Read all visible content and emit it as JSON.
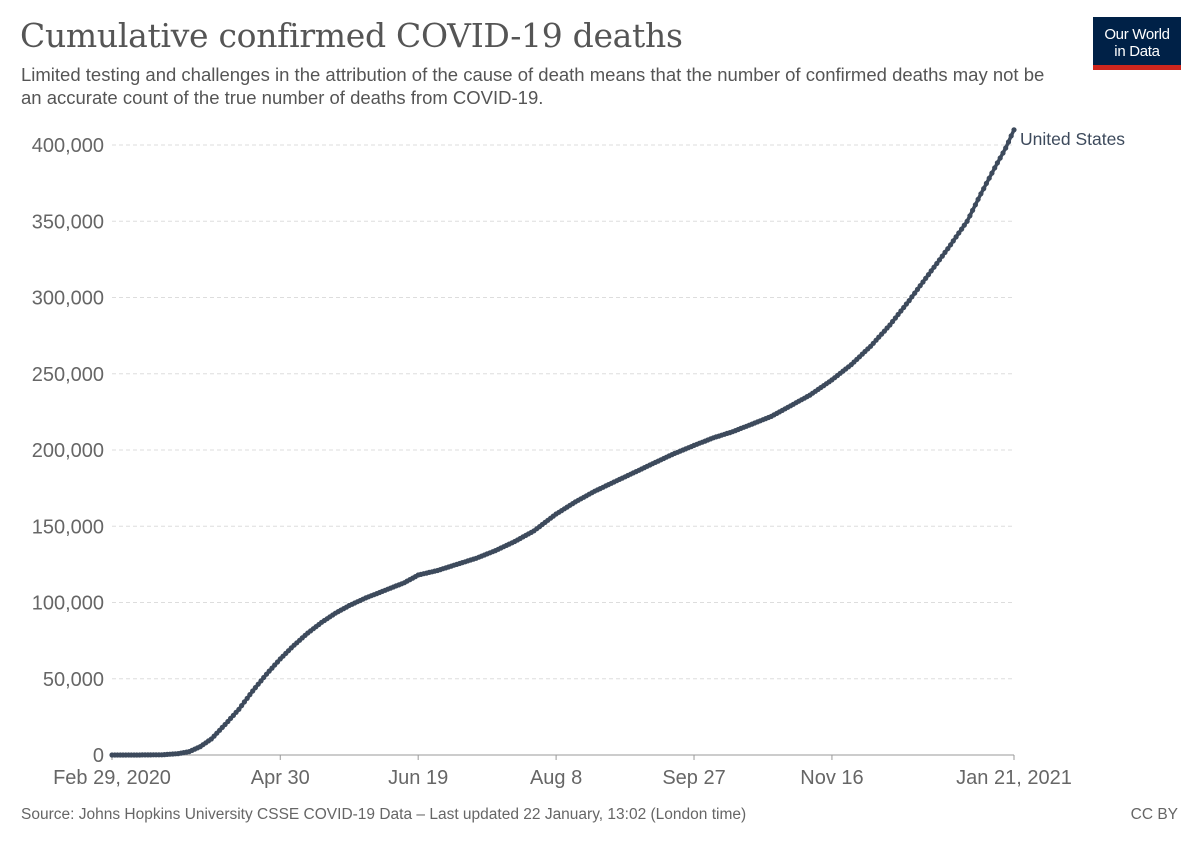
{
  "header": {
    "title": "Cumulative confirmed COVID-19 deaths",
    "subtitle": "Limited testing and challenges in the attribution of the cause of death means that the number of confirmed deaths may not be an accurate count of the true number of deaths from COVID-19.",
    "logo_line1": "Our World",
    "logo_line2": "in Data"
  },
  "footer": {
    "source": "Source: Johns Hopkins University CSSE COVID-19 Data – Last updated 22 January, 13:02 (London time)",
    "license": "CC BY"
  },
  "colors": {
    "series": "#3d4a5c",
    "grid": "#dddddd",
    "text": "#555555",
    "logo_bg": "#002147",
    "logo_accent": "#ce261e"
  },
  "chart_data": {
    "type": "line",
    "title": "Cumulative confirmed COVID-19 deaths",
    "xlim": [
      "2020-02-29",
      "2021-01-21"
    ],
    "ylim": [
      0,
      400000
    ],
    "y_ticks": [
      {
        "value": 0,
        "label": "0"
      },
      {
        "value": 50000,
        "label": "50,000"
      },
      {
        "value": 100000,
        "label": "100,000"
      },
      {
        "value": 150000,
        "label": "150,000"
      },
      {
        "value": 200000,
        "label": "200,000"
      },
      {
        "value": 250000,
        "label": "250,000"
      },
      {
        "value": 300000,
        "label": "300,000"
      },
      {
        "value": 350000,
        "label": "350,000"
      },
      {
        "value": 400000,
        "label": "400,000"
      }
    ],
    "x_ticks": [
      {
        "value": "2020-02-29",
        "label": "Feb 29, 2020"
      },
      {
        "value": "2020-04-30",
        "label": "Apr 30"
      },
      {
        "value": "2020-06-19",
        "label": "Jun 19"
      },
      {
        "value": "2020-08-08",
        "label": "Aug 8"
      },
      {
        "value": "2020-09-27",
        "label": "Sep 27"
      },
      {
        "value": "2020-11-16",
        "label": "Nov 16"
      },
      {
        "value": "2021-01-21",
        "label": "Jan 21, 2021"
      }
    ],
    "grid": true,
    "legend": "end-of-line label",
    "series": [
      {
        "name": "United States",
        "points": [
          [
            "2020-02-29",
            0
          ],
          [
            "2020-03-10",
            30
          ],
          [
            "2020-03-18",
            150
          ],
          [
            "2020-03-24",
            900
          ],
          [
            "2020-03-28",
            2200
          ],
          [
            "2020-04-01",
            5500
          ],
          [
            "2020-04-05",
            10500
          ],
          [
            "2020-04-10",
            20000
          ],
          [
            "2020-04-15",
            30000
          ],
          [
            "2020-04-20",
            42000
          ],
          [
            "2020-04-25",
            53000
          ],
          [
            "2020-04-30",
            63000
          ],
          [
            "2020-05-05",
            72000
          ],
          [
            "2020-05-10",
            80000
          ],
          [
            "2020-05-15",
            87000
          ],
          [
            "2020-05-20",
            93000
          ],
          [
            "2020-05-25",
            98000
          ],
          [
            "2020-05-31",
            103000
          ],
          [
            "2020-06-07",
            108000
          ],
          [
            "2020-06-14",
            113000
          ],
          [
            "2020-06-19",
            118000
          ],
          [
            "2020-06-26",
            121000
          ],
          [
            "2020-07-03",
            125000
          ],
          [
            "2020-07-10",
            129000
          ],
          [
            "2020-07-17",
            134000
          ],
          [
            "2020-07-24",
            140000
          ],
          [
            "2020-07-31",
            147000
          ],
          [
            "2020-08-08",
            158000
          ],
          [
            "2020-08-15",
            166000
          ],
          [
            "2020-08-22",
            173000
          ],
          [
            "2020-08-29",
            179000
          ],
          [
            "2020-09-05",
            185000
          ],
          [
            "2020-09-12",
            191000
          ],
          [
            "2020-09-19",
            197000
          ],
          [
            "2020-09-27",
            203000
          ],
          [
            "2020-10-04",
            208000
          ],
          [
            "2020-10-11",
            212000
          ],
          [
            "2020-10-18",
            217000
          ],
          [
            "2020-10-25",
            222000
          ],
          [
            "2020-11-01",
            229000
          ],
          [
            "2020-11-08",
            236000
          ],
          [
            "2020-11-16",
            246000
          ],
          [
            "2020-11-23",
            256000
          ],
          [
            "2020-11-30",
            268000
          ],
          [
            "2020-12-07",
            282000
          ],
          [
            "2020-12-14",
            298000
          ],
          [
            "2020-12-21",
            315000
          ],
          [
            "2020-12-28",
            332000
          ],
          [
            "2021-01-04",
            350000
          ],
          [
            "2021-01-09",
            368000
          ],
          [
            "2021-01-14",
            385000
          ],
          [
            "2021-01-18",
            398000
          ],
          [
            "2021-01-21",
            410000
          ]
        ]
      }
    ]
  }
}
